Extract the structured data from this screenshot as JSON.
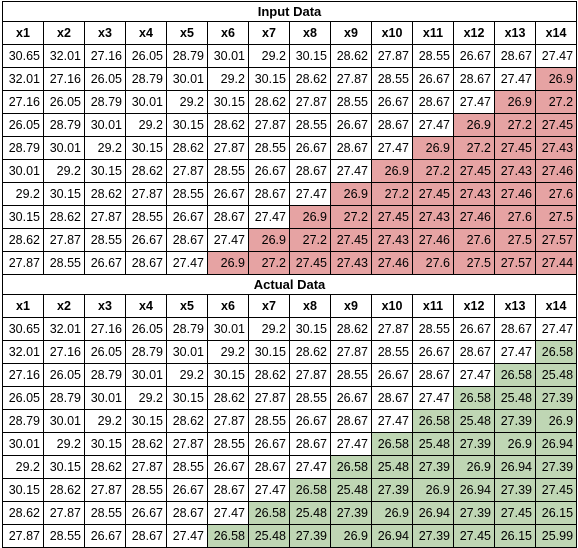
{
  "tables": [
    {
      "title": "Input Data",
      "highlight": "red",
      "headers": [
        "x1",
        "x2",
        "x3",
        "x4",
        "x5",
        "x6",
        "x7",
        "x8",
        "x9",
        "x10",
        "x11",
        "x12",
        "x13",
        "x14"
      ],
      "rows": [
        [
          "30.65",
          "32.01",
          "27.16",
          "26.05",
          "28.79",
          "30.01",
          "29.2",
          "30.15",
          "28.62",
          "27.87",
          "28.55",
          "26.67",
          "28.67",
          "27.47"
        ],
        [
          "32.01",
          "27.16",
          "26.05",
          "28.79",
          "30.01",
          "29.2",
          "30.15",
          "28.62",
          "27.87",
          "28.55",
          "26.67",
          "28.67",
          "27.47",
          "26.9"
        ],
        [
          "27.16",
          "26.05",
          "28.79",
          "30.01",
          "29.2",
          "30.15",
          "28.62",
          "27.87",
          "28.55",
          "26.67",
          "28.67",
          "27.47",
          "26.9",
          "27.2"
        ],
        [
          "26.05",
          "28.79",
          "30.01",
          "29.2",
          "30.15",
          "28.62",
          "27.87",
          "28.55",
          "26.67",
          "28.67",
          "27.47",
          "26.9",
          "27.2",
          "27.45"
        ],
        [
          "28.79",
          "30.01",
          "29.2",
          "30.15",
          "28.62",
          "27.87",
          "28.55",
          "26.67",
          "28.67",
          "27.47",
          "26.9",
          "27.2",
          "27.45",
          "27.43"
        ],
        [
          "30.01",
          "29.2",
          "30.15",
          "28.62",
          "27.87",
          "28.55",
          "26.67",
          "28.67",
          "27.47",
          "26.9",
          "27.2",
          "27.45",
          "27.43",
          "27.46"
        ],
        [
          "29.2",
          "30.15",
          "28.62",
          "27.87",
          "28.55",
          "26.67",
          "28.67",
          "27.47",
          "26.9",
          "27.2",
          "27.45",
          "27.43",
          "27.46",
          "27.6"
        ],
        [
          "30.15",
          "28.62",
          "27.87",
          "28.55",
          "26.67",
          "28.67",
          "27.47",
          "26.9",
          "27.2",
          "27.45",
          "27.43",
          "27.46",
          "27.6",
          "27.5"
        ],
        [
          "28.62",
          "27.87",
          "28.55",
          "26.67",
          "28.67",
          "27.47",
          "26.9",
          "27.2",
          "27.45",
          "27.43",
          "27.46",
          "27.6",
          "27.5",
          "27.57"
        ],
        [
          "27.87",
          "28.55",
          "26.67",
          "28.67",
          "27.47",
          "26.9",
          "27.2",
          "27.45",
          "27.43",
          "27.46",
          "27.6",
          "27.5",
          "27.57",
          "27.44"
        ]
      ]
    },
    {
      "title": "Actual Data",
      "highlight": "green",
      "headers": [
        "x1",
        "x2",
        "x3",
        "x4",
        "x5",
        "x6",
        "x7",
        "x8",
        "x9",
        "x10",
        "x11",
        "x12",
        "x13",
        "x14"
      ],
      "rows": [
        [
          "30.65",
          "32.01",
          "27.16",
          "26.05",
          "28.79",
          "30.01",
          "29.2",
          "30.15",
          "28.62",
          "27.87",
          "28.55",
          "26.67",
          "28.67",
          "27.47"
        ],
        [
          "32.01",
          "27.16",
          "26.05",
          "28.79",
          "30.01",
          "29.2",
          "30.15",
          "28.62",
          "27.87",
          "28.55",
          "26.67",
          "28.67",
          "27.47",
          "26.58"
        ],
        [
          "27.16",
          "26.05",
          "28.79",
          "30.01",
          "29.2",
          "30.15",
          "28.62",
          "27.87",
          "28.55",
          "26.67",
          "28.67",
          "27.47",
          "26.58",
          "25.48"
        ],
        [
          "26.05",
          "28.79",
          "30.01",
          "29.2",
          "30.15",
          "28.62",
          "27.87",
          "28.55",
          "26.67",
          "28.67",
          "27.47",
          "26.58",
          "25.48",
          "27.39"
        ],
        [
          "28.79",
          "30.01",
          "29.2",
          "30.15",
          "28.62",
          "27.87",
          "28.55",
          "26.67",
          "28.67",
          "27.47",
          "26.58",
          "25.48",
          "27.39",
          "26.9"
        ],
        [
          "30.01",
          "29.2",
          "30.15",
          "28.62",
          "27.87",
          "28.55",
          "26.67",
          "28.67",
          "27.47",
          "26.58",
          "25.48",
          "27.39",
          "26.9",
          "26.94"
        ],
        [
          "29.2",
          "30.15",
          "28.62",
          "27.87",
          "28.55",
          "26.67",
          "28.67",
          "27.47",
          "26.58",
          "25.48",
          "27.39",
          "26.9",
          "26.94",
          "27.39"
        ],
        [
          "30.15",
          "28.62",
          "27.87",
          "28.55",
          "26.67",
          "28.67",
          "27.47",
          "26.58",
          "25.48",
          "27.39",
          "26.9",
          "26.94",
          "27.39",
          "27.45"
        ],
        [
          "28.62",
          "27.87",
          "28.55",
          "26.67",
          "28.67",
          "27.47",
          "26.58",
          "25.48",
          "27.39",
          "26.9",
          "26.94",
          "27.39",
          "27.45",
          "26.15"
        ],
        [
          "27.87",
          "28.55",
          "26.67",
          "28.67",
          "27.47",
          "26.58",
          "25.48",
          "27.39",
          "26.9",
          "26.94",
          "27.39",
          "27.45",
          "26.15",
          "25.99"
        ]
      ]
    }
  ],
  "colors": {
    "red": "#e6a3a3",
    "green": "#bfd6b4"
  }
}
